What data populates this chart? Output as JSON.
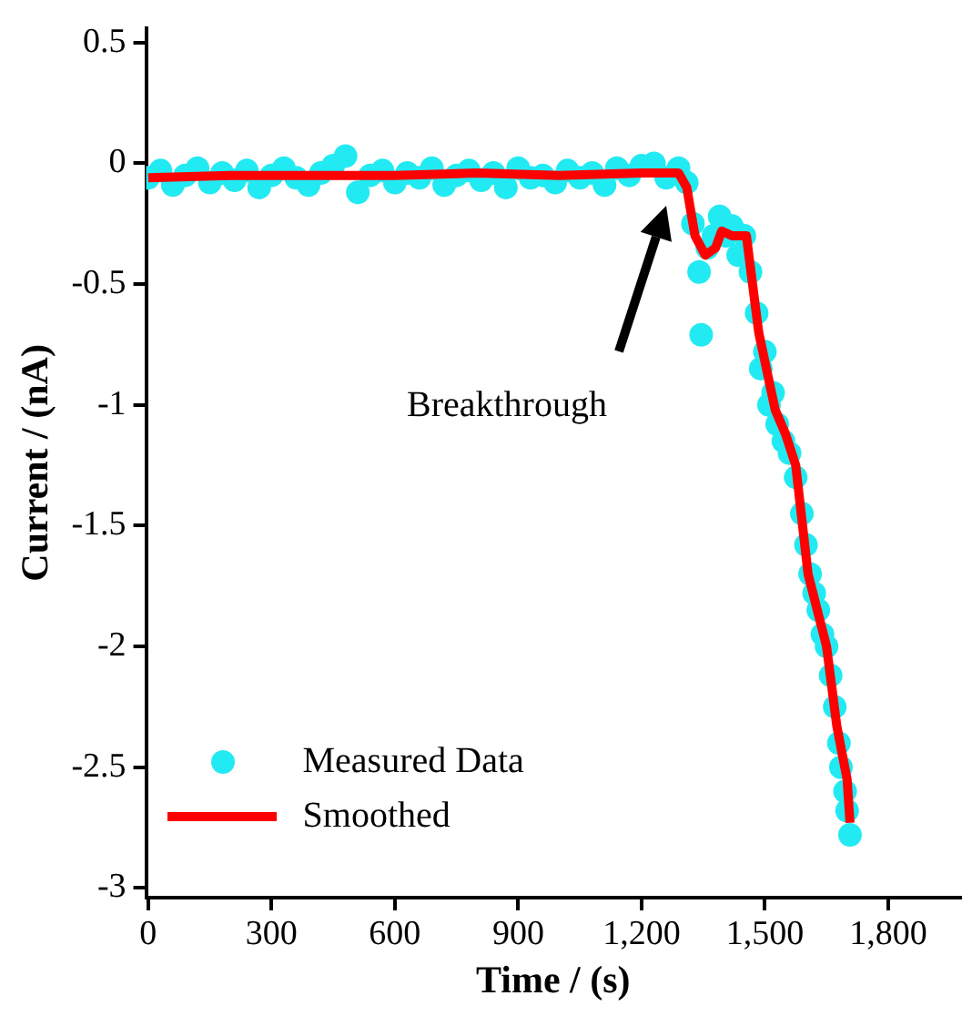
{
  "chart_data": {
    "type": "scatter",
    "xlabel": "Time / (s)",
    "ylabel": "Current / (nA)",
    "xlim": [
      -5,
      1975
    ],
    "xticks": [
      0,
      300,
      600,
      900,
      {
        "value": 1200,
        "label": "1,200"
      },
      {
        "value": 1500,
        "label": "1,500"
      },
      {
        "value": 1800,
        "label": "1,800"
      }
    ],
    "ylim": [
      -3.04,
      0.56
    ],
    "yticks": [
      0.5,
      0,
      -0.5,
      -1,
      -1.5,
      -2,
      -2.5,
      -3
    ],
    "grid": false,
    "legend": "bottom left",
    "annotations": [
      "Breakthrough"
    ],
    "series": [
      {
        "name": "Measured Data",
        "marker": "circle",
        "color": "#22eaf2",
        "x": [
          0,
          30,
          60,
          90,
          120,
          150,
          180,
          210,
          240,
          270,
          300,
          330,
          360,
          390,
          420,
          450,
          480,
          510,
          540,
          570,
          600,
          630,
          660,
          690,
          720,
          750,
          780,
          810,
          840,
          870,
          900,
          930,
          960,
          990,
          1020,
          1050,
          1080,
          1110,
          1140,
          1170,
          1200,
          1230,
          1260,
          1290,
          1310,
          1325,
          1340,
          1345,
          1360,
          1375,
          1390,
          1405,
          1420,
          1435,
          1450,
          1465,
          1480,
          1490,
          1500,
          1510,
          1520,
          1530,
          1545,
          1560,
          1575,
          1590,
          1600,
          1610,
          1620,
          1630,
          1640,
          1650,
          1660,
          1670,
          1680,
          1685,
          1695,
          1700,
          1707
        ],
        "values": [
          -0.06,
          -0.03,
          -0.09,
          -0.05,
          -0.02,
          -0.08,
          -0.04,
          -0.07,
          -0.03,
          -0.1,
          -0.05,
          -0.02,
          -0.06,
          -0.09,
          -0.04,
          -0.01,
          0.03,
          -0.12,
          -0.05,
          -0.03,
          -0.08,
          -0.04,
          -0.06,
          -0.02,
          -0.09,
          -0.05,
          -0.03,
          -0.07,
          -0.04,
          -0.1,
          -0.02,
          -0.06,
          -0.05,
          -0.08,
          -0.03,
          -0.06,
          -0.04,
          -0.09,
          -0.02,
          -0.05,
          -0.01,
          0.0,
          -0.06,
          -0.02,
          -0.08,
          -0.25,
          -0.45,
          -0.71,
          -0.35,
          -0.3,
          -0.22,
          -0.3,
          -0.26,
          -0.38,
          -0.3,
          -0.45,
          -0.62,
          -0.85,
          -0.78,
          -1.0,
          -0.95,
          -1.08,
          -1.15,
          -1.2,
          -1.3,
          -1.45,
          -1.58,
          -1.7,
          -1.78,
          -1.85,
          -1.95,
          -2.0,
          -2.12,
          -2.25,
          -2.4,
          -2.5,
          -2.6,
          -2.68,
          -2.78
        ]
      },
      {
        "name": "Smoothed",
        "type": "line",
        "marker": "none",
        "line_style": "solid",
        "color": "#ff0000",
        "x": [
          0,
          200,
          400,
          600,
          800,
          1000,
          1200,
          1290,
          1310,
          1330,
          1355,
          1380,
          1395,
          1420,
          1455,
          1470,
          1485,
          1500,
          1525,
          1550,
          1575,
          1605,
          1650,
          1675,
          1700,
          1707
        ],
        "values": [
          -0.06,
          -0.05,
          -0.05,
          -0.05,
          -0.04,
          -0.05,
          -0.04,
          -0.04,
          -0.1,
          -0.3,
          -0.38,
          -0.35,
          -0.28,
          -0.3,
          -0.3,
          -0.5,
          -0.7,
          -0.82,
          -1.02,
          -1.12,
          -1.25,
          -1.7,
          -2.0,
          -2.33,
          -2.55,
          -2.73
        ]
      }
    ]
  }
}
